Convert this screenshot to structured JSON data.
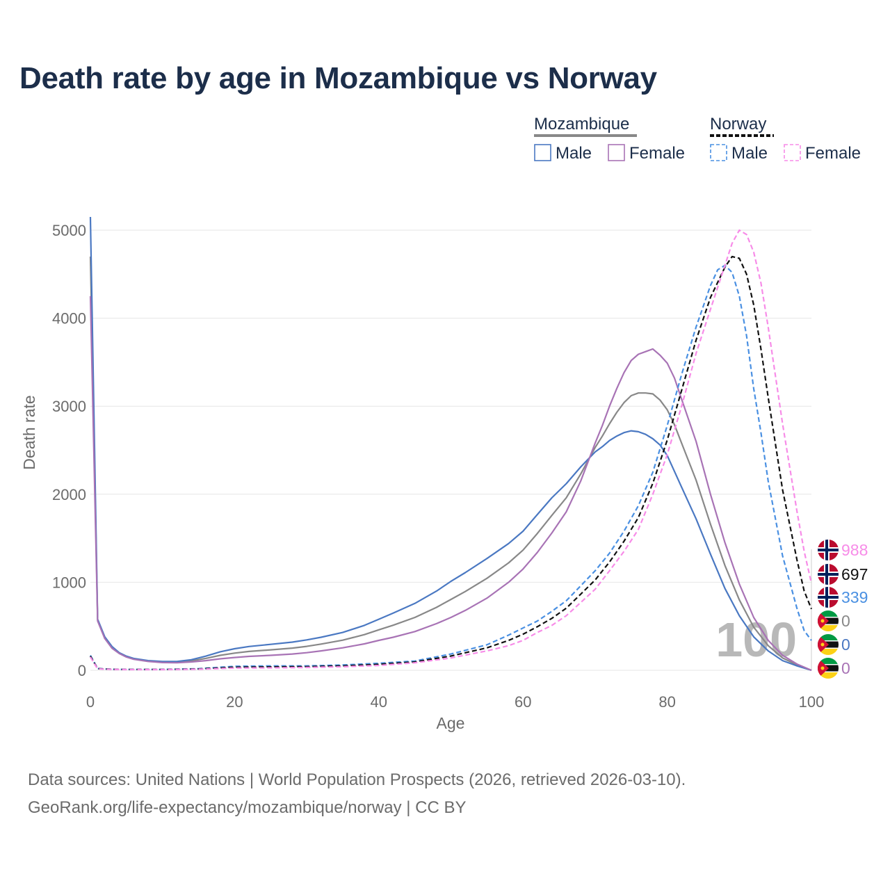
{
  "title": "Death rate by age in Mozambique vs Norway",
  "sources": {
    "line1": "Data sources: United Nations | World Population Prospects (2026, retrieved 2026-03-10).",
    "line2": "GeoRank.org/life-expectancy/mozambique/norway | CC BY"
  },
  "legend": {
    "groups": [
      {
        "name": "Mozambique",
        "color": "#888888",
        "dash": false,
        "items": [
          {
            "label": "Male",
            "color": "#4a78c2"
          },
          {
            "label": "Female",
            "color": "#a873b5"
          }
        ]
      },
      {
        "name": "Norway",
        "color": "#111111",
        "dash": true,
        "items": [
          {
            "label": "Male",
            "color": "#4a90e2"
          },
          {
            "label": "Female",
            "color": "#f78ce8"
          }
        ]
      }
    ]
  },
  "chart_data": {
    "type": "line",
    "title": "Death rate by age in Mozambique vs Norway",
    "xlabel": "Age",
    "ylabel": "Death rate",
    "xlim": [
      0,
      100
    ],
    "ylim": [
      0,
      5150
    ],
    "xticks": [
      0,
      20,
      40,
      60,
      80,
      100
    ],
    "yticks": [
      0,
      1000,
      2000,
      3000,
      4000,
      5000
    ],
    "grid": true,
    "annotation": "100",
    "series": [
      {
        "name": "Mozambique Male",
        "country": "mozambique",
        "color": "#4a78c2",
        "dash": false,
        "end_label": "0",
        "points": [
          [
            0,
            5150
          ],
          [
            1,
            580
          ],
          [
            2,
            380
          ],
          [
            3,
            270
          ],
          [
            4,
            200
          ],
          [
            5,
            160
          ],
          [
            6,
            135
          ],
          [
            8,
            110
          ],
          [
            10,
            100
          ],
          [
            12,
            100
          ],
          [
            14,
            120
          ],
          [
            16,
            160
          ],
          [
            18,
            210
          ],
          [
            20,
            245
          ],
          [
            22,
            270
          ],
          [
            25,
            295
          ],
          [
            28,
            320
          ],
          [
            30,
            345
          ],
          [
            32,
            375
          ],
          [
            35,
            430
          ],
          [
            38,
            510
          ],
          [
            40,
            580
          ],
          [
            42,
            650
          ],
          [
            45,
            760
          ],
          [
            48,
            900
          ],
          [
            50,
            1010
          ],
          [
            52,
            1110
          ],
          [
            55,
            1270
          ],
          [
            58,
            1440
          ],
          [
            60,
            1580
          ],
          [
            62,
            1770
          ],
          [
            64,
            1960
          ],
          [
            66,
            2120
          ],
          [
            68,
            2310
          ],
          [
            70,
            2480
          ],
          [
            71,
            2540
          ],
          [
            72,
            2610
          ],
          [
            73,
            2660
          ],
          [
            74,
            2700
          ],
          [
            75,
            2720
          ],
          [
            76,
            2710
          ],
          [
            77,
            2680
          ],
          [
            78,
            2630
          ],
          [
            79,
            2560
          ],
          [
            80,
            2440
          ],
          [
            81,
            2260
          ],
          [
            82,
            2080
          ],
          [
            84,
            1720
          ],
          [
            86,
            1320
          ],
          [
            88,
            930
          ],
          [
            90,
            620
          ],
          [
            92,
            380
          ],
          [
            94,
            220
          ],
          [
            96,
            110
          ],
          [
            98,
            50
          ],
          [
            100,
            0
          ]
        ]
      },
      {
        "name": "Mozambique Female",
        "country": "mozambique",
        "color": "#a873b5",
        "dash": false,
        "end_label": "0",
        "points": [
          [
            0,
            4250
          ],
          [
            1,
            560
          ],
          [
            2,
            360
          ],
          [
            3,
            250
          ],
          [
            4,
            190
          ],
          [
            5,
            150
          ],
          [
            6,
            125
          ],
          [
            8,
            100
          ],
          [
            10,
            88
          ],
          [
            12,
            85
          ],
          [
            14,
            95
          ],
          [
            16,
            110
          ],
          [
            18,
            130
          ],
          [
            20,
            145
          ],
          [
            22,
            158
          ],
          [
            25,
            170
          ],
          [
            28,
            185
          ],
          [
            30,
            200
          ],
          [
            32,
            220
          ],
          [
            35,
            255
          ],
          [
            38,
            300
          ],
          [
            40,
            340
          ],
          [
            42,
            375
          ],
          [
            45,
            440
          ],
          [
            48,
            530
          ],
          [
            50,
            600
          ],
          [
            52,
            680
          ],
          [
            55,
            820
          ],
          [
            58,
            1000
          ],
          [
            60,
            1150
          ],
          [
            62,
            1340
          ],
          [
            64,
            1560
          ],
          [
            66,
            1800
          ],
          [
            68,
            2150
          ],
          [
            70,
            2580
          ],
          [
            71,
            2780
          ],
          [
            72,
            3000
          ],
          [
            73,
            3200
          ],
          [
            74,
            3380
          ],
          [
            75,
            3520
          ],
          [
            76,
            3590
          ],
          [
            77,
            3620
          ],
          [
            78,
            3650
          ],
          [
            79,
            3580
          ],
          [
            80,
            3490
          ],
          [
            81,
            3320
          ],
          [
            82,
            3080
          ],
          [
            84,
            2600
          ],
          [
            86,
            2000
          ],
          [
            88,
            1450
          ],
          [
            90,
            980
          ],
          [
            92,
            600
          ],
          [
            94,
            340
          ],
          [
            96,
            170
          ],
          [
            98,
            70
          ],
          [
            100,
            0
          ]
        ]
      },
      {
        "name": "Mozambique Both",
        "country": "mozambique",
        "color": "#888888",
        "dash": false,
        "end_label": "0",
        "points": [
          [
            0,
            4700
          ],
          [
            1,
            570
          ],
          [
            2,
            370
          ],
          [
            3,
            260
          ],
          [
            4,
            195
          ],
          [
            5,
            155
          ],
          [
            6,
            130
          ],
          [
            8,
            105
          ],
          [
            10,
            94
          ],
          [
            12,
            92
          ],
          [
            14,
            107
          ],
          [
            16,
            135
          ],
          [
            18,
            170
          ],
          [
            20,
            195
          ],
          [
            22,
            214
          ],
          [
            25,
            232
          ],
          [
            28,
            252
          ],
          [
            30,
            272
          ],
          [
            32,
            298
          ],
          [
            35,
            342
          ],
          [
            38,
            405
          ],
          [
            40,
            460
          ],
          [
            42,
            512
          ],
          [
            45,
            600
          ],
          [
            48,
            715
          ],
          [
            50,
            805
          ],
          [
            52,
            895
          ],
          [
            55,
            1045
          ],
          [
            58,
            1220
          ],
          [
            60,
            1365
          ],
          [
            62,
            1555
          ],
          [
            64,
            1760
          ],
          [
            66,
            1960
          ],
          [
            68,
            2230
          ],
          [
            70,
            2530
          ],
          [
            71,
            2660
          ],
          [
            72,
            2800
          ],
          [
            73,
            2930
          ],
          [
            74,
            3040
          ],
          [
            75,
            3120
          ],
          [
            76,
            3150
          ],
          [
            77,
            3150
          ],
          [
            78,
            3140
          ],
          [
            79,
            3070
          ],
          [
            80,
            2960
          ],
          [
            81,
            2790
          ],
          [
            82,
            2580
          ],
          [
            84,
            2160
          ],
          [
            86,
            1660
          ],
          [
            88,
            1190
          ],
          [
            90,
            800
          ],
          [
            92,
            490
          ],
          [
            94,
            280
          ],
          [
            96,
            140
          ],
          [
            98,
            60
          ],
          [
            100,
            0
          ]
        ]
      },
      {
        "name": "Norway Male",
        "country": "norway",
        "color": "#4a90e2",
        "dash": true,
        "end_label": "339",
        "points": [
          [
            0,
            170
          ],
          [
            1,
            20
          ],
          [
            3,
            12
          ],
          [
            5,
            10
          ],
          [
            10,
            10
          ],
          [
            15,
            18
          ],
          [
            20,
            45
          ],
          [
            25,
            50
          ],
          [
            30,
            50
          ],
          [
            35,
            60
          ],
          [
            40,
            80
          ],
          [
            45,
            105
          ],
          [
            50,
            185
          ],
          [
            55,
            290
          ],
          [
            58,
            400
          ],
          [
            60,
            480
          ],
          [
            62,
            560
          ],
          [
            64,
            670
          ],
          [
            66,
            790
          ],
          [
            68,
            960
          ],
          [
            70,
            1130
          ],
          [
            72,
            1330
          ],
          [
            74,
            1580
          ],
          [
            76,
            1870
          ],
          [
            78,
            2250
          ],
          [
            80,
            2780
          ],
          [
            82,
            3360
          ],
          [
            84,
            3900
          ],
          [
            86,
            4370
          ],
          [
            87,
            4550
          ],
          [
            88,
            4600
          ],
          [
            89,
            4520
          ],
          [
            90,
            4250
          ],
          [
            91,
            3800
          ],
          [
            92,
            3200
          ],
          [
            93,
            2700
          ],
          [
            94,
            2150
          ],
          [
            96,
            1300
          ],
          [
            98,
            700
          ],
          [
            99,
            450
          ],
          [
            100,
            339
          ]
        ]
      },
      {
        "name": "Norway Female",
        "country": "norway",
        "color": "#f78ce8",
        "dash": true,
        "end_label": "988",
        "points": [
          [
            0,
            150
          ],
          [
            1,
            16
          ],
          [
            3,
            10
          ],
          [
            5,
            8
          ],
          [
            10,
            8
          ],
          [
            15,
            12
          ],
          [
            20,
            25
          ],
          [
            25,
            28
          ],
          [
            30,
            32
          ],
          [
            35,
            40
          ],
          [
            40,
            55
          ],
          [
            45,
            85
          ],
          [
            50,
            140
          ],
          [
            55,
            220
          ],
          [
            58,
            280
          ],
          [
            60,
            340
          ],
          [
            62,
            430
          ],
          [
            64,
            510
          ],
          [
            66,
            620
          ],
          [
            68,
            770
          ],
          [
            70,
            920
          ],
          [
            72,
            1130
          ],
          [
            74,
            1350
          ],
          [
            76,
            1600
          ],
          [
            78,
            2000
          ],
          [
            80,
            2450
          ],
          [
            82,
            3000
          ],
          [
            84,
            3600
          ],
          [
            86,
            4100
          ],
          [
            88,
            4600
          ],
          [
            89,
            4850
          ],
          [
            90,
            5000
          ],
          [
            91,
            4950
          ],
          [
            92,
            4750
          ],
          [
            93,
            4400
          ],
          [
            94,
            3900
          ],
          [
            96,
            2800
          ],
          [
            98,
            1800
          ],
          [
            99,
            1350
          ],
          [
            100,
            988
          ]
        ]
      },
      {
        "name": "Norway Both",
        "country": "norway",
        "color": "#111111",
        "dash": true,
        "end_label": "697",
        "points": [
          [
            0,
            160
          ],
          [
            1,
            18
          ],
          [
            3,
            11
          ],
          [
            5,
            9
          ],
          [
            10,
            9
          ],
          [
            15,
            15
          ],
          [
            20,
            35
          ],
          [
            25,
            39
          ],
          [
            30,
            41
          ],
          [
            35,
            50
          ],
          [
            40,
            67
          ],
          [
            45,
            95
          ],
          [
            50,
            162
          ],
          [
            55,
            255
          ],
          [
            58,
            340
          ],
          [
            60,
            410
          ],
          [
            62,
            495
          ],
          [
            64,
            590
          ],
          [
            66,
            705
          ],
          [
            68,
            865
          ],
          [
            70,
            1025
          ],
          [
            72,
            1230
          ],
          [
            74,
            1465
          ],
          [
            76,
            1735
          ],
          [
            78,
            2125
          ],
          [
            80,
            2615
          ],
          [
            82,
            3180
          ],
          [
            84,
            3750
          ],
          [
            86,
            4235
          ],
          [
            88,
            4580
          ],
          [
            89,
            4700
          ],
          [
            90,
            4680
          ],
          [
            91,
            4500
          ],
          [
            92,
            4150
          ],
          [
            93,
            3650
          ],
          [
            94,
            3100
          ],
          [
            96,
            2050
          ],
          [
            98,
            1250
          ],
          [
            99,
            900
          ],
          [
            100,
            697
          ]
        ]
      }
    ]
  }
}
